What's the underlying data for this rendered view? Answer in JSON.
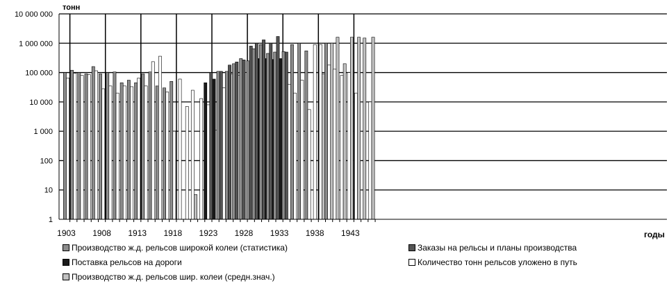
{
  "chart_data": {
    "type": "bar",
    "y_scale": "log",
    "ylabel": "тонн",
    "xlabel": "годы",
    "ylim": [
      1,
      10000000
    ],
    "y_ticks": [
      "1",
      "10",
      "100",
      "1 000",
      "10 000",
      "100 000",
      "1 000 000",
      "10 000 000"
    ],
    "x_tick_labels": [
      "1903",
      "1908",
      "1913",
      "1918",
      "1923",
      "1928",
      "1933",
      "1938",
      "1943"
    ],
    "grid": true,
    "legend_position": "bottom",
    "years": [
      1903,
      1904,
      1905,
      1906,
      1907,
      1908,
      1909,
      1910,
      1911,
      1912,
      1913,
      1914,
      1915,
      1916,
      1917,
      1918,
      1919,
      1920,
      1921,
      1922,
      1923,
      1924,
      1925,
      1926,
      1927,
      1928,
      1929,
      1930,
      1931,
      1932,
      1933,
      1934,
      1935,
      1936,
      1937,
      1938,
      1939,
      1940,
      1941,
      1942,
      1943,
      1944,
      1945,
      1946
    ],
    "series": [
      {
        "name": "Производство ж.д. рельсов широкой колеи (статистика)",
        "color": "#8c8c8c",
        "values": [
          100000,
          120000,
          100000,
          90000,
          160000,
          90000,
          100000,
          105000,
          45000,
          55000,
          45000,
          90000,
          105000,
          35000,
          30000,
          50000,
          null,
          null,
          null,
          null,
          null,
          null,
          110000,
          110000,
          200000,
          300000,
          250000,
          650000,
          900000,
          450000,
          500000,
          520000,
          900000,
          1000000,
          550000,
          null,
          null,
          1000000,
          null,
          null,
          null,
          null,
          null,
          null
        ]
      },
      {
        "name": "Заказы на рельсы и планы производства",
        "color": "#555555",
        "values": [
          null,
          null,
          null,
          null,
          null,
          null,
          null,
          null,
          null,
          null,
          null,
          null,
          null,
          null,
          null,
          null,
          null,
          null,
          null,
          null,
          null,
          100000,
          110000,
          180000,
          230000,
          270000,
          800000,
          1000000,
          1300000,
          1000000,
          1700000,
          500000,
          null,
          null,
          null,
          null,
          null,
          null,
          null,
          null,
          null,
          null,
          null,
          null
        ]
      },
      {
        "name": "Поставка рельсов на дороги",
        "color": "#1a1a1a",
        "values": [
          null,
          null,
          null,
          null,
          null,
          null,
          null,
          null,
          null,
          null,
          null,
          null,
          null,
          null,
          null,
          null,
          null,
          null,
          null,
          null,
          45000,
          60000,
          null,
          null,
          null,
          null,
          null,
          300000,
          300000,
          280000,
          300000,
          null,
          null,
          null,
          null,
          null,
          null,
          null,
          null,
          null,
          null,
          null,
          null,
          null
        ]
      },
      {
        "name": "Количество тонн рельсов уложено в путь",
        "color": "#ffffff",
        "values": [
          65000,
          95000,
          80000,
          85000,
          115000,
          28000,
          35000,
          20000,
          35000,
          33000,
          65000,
          35000,
          235000,
          360000,
          22000,
          1000,
          60000,
          7000,
          25000,
          13000,
          8000,
          1100,
          30000,
          90000,
          80000,
          100000,
          25000,
          30000,
          180000,
          60000,
          35000,
          40000,
          20000,
          55000,
          5500,
          900000,
          900000,
          180000,
          130000,
          80000,
          100000,
          20000,
          null,
          10000
        ]
      },
      {
        "name": "Производство ж.д. рельсов шир. колеи (средн.знач.)",
        "color": "#c0c0c0",
        "values": [
          null,
          null,
          null,
          null,
          null,
          null,
          null,
          null,
          null,
          null,
          null,
          null,
          null,
          null,
          null,
          null,
          null,
          null,
          7,
          null,
          450,
          15000,
          60000,
          null,
          null,
          null,
          null,
          null,
          null,
          null,
          null,
          null,
          null,
          null,
          null,
          null,
          90000,
          1000000,
          1600000,
          200000,
          1600000,
          1600000,
          1500000,
          1600000
        ]
      }
    ]
  }
}
